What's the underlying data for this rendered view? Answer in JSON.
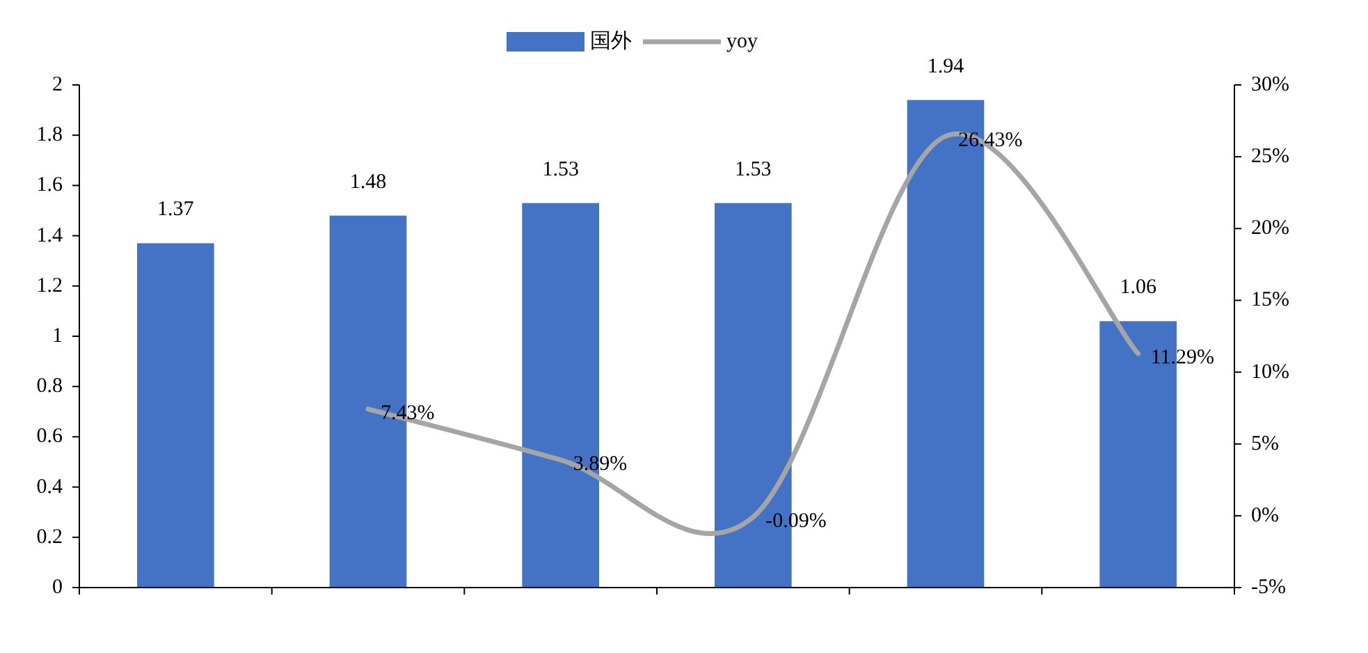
{
  "chart_data": {
    "type": "bar",
    "categories": [
      null,
      null,
      null,
      null,
      null,
      null
    ],
    "series": [
      {
        "name": "国外",
        "color": "#4472c4",
        "values": [
          1.37,
          1.48,
          1.53,
          1.53,
          1.94,
          1.06
        ],
        "value_labels": [
          "1.37",
          "1.48",
          "1.53",
          "1.53",
          "1.94",
          "1.06"
        ]
      },
      {
        "name": "yoy",
        "type": "line",
        "axis": "y2",
        "color": "#a5a5a5",
        "values": [
          null,
          7.43,
          3.89,
          -0.09,
          26.43,
          11.29
        ],
        "value_labels": [
          null,
          "7.43%",
          "3.89%",
          "-0.09%",
          "26.43%",
          "11.29%"
        ]
      }
    ],
    "ylim": [
      0,
      2
    ],
    "yticks": [
      0,
      0.2,
      0.4,
      0.6,
      0.8,
      1,
      1.2,
      1.4,
      1.6,
      1.8,
      2
    ],
    "y2lim": [
      -5,
      30
    ],
    "y2ticks": [
      {
        "value": -5,
        "label": "-5%"
      },
      {
        "value": 0,
        "label": "0%"
      },
      {
        "value": 5,
        "label": "5%"
      },
      {
        "value": 10,
        "label": "10%"
      },
      {
        "value": 15,
        "label": "15%"
      },
      {
        "value": 20,
        "label": "20%"
      },
      {
        "value": 25,
        "label": "25%"
      },
      {
        "value": 30,
        "label": "30%"
      }
    ],
    "legend": "top",
    "grid": false,
    "marker": "none",
    "line_style": "solid"
  }
}
